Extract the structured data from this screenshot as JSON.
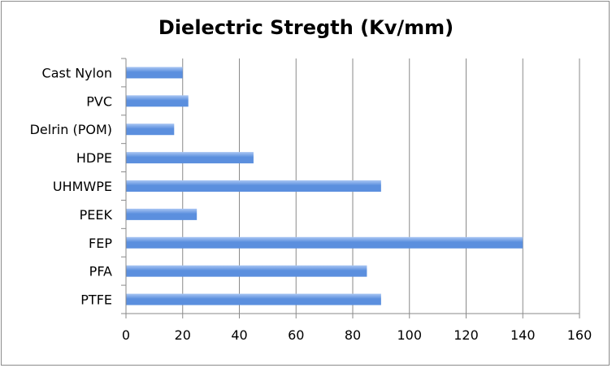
{
  "chart_data": {
    "type": "bar",
    "orientation": "horizontal",
    "title": "Dielectric Stregth (Kv/mm)",
    "categories": [
      "Cast Nylon",
      "PVC",
      "Delrin (POM)",
      "HDPE",
      "UHMWPE",
      "PEEK",
      "FEP",
      "PFA",
      "PTFE"
    ],
    "values": [
      20,
      22,
      17,
      45,
      90,
      25,
      140,
      85,
      90
    ],
    "xlabel": "",
    "ylabel": "",
    "xlim": [
      0,
      160
    ],
    "xticks": [
      0,
      20,
      40,
      60,
      80,
      100,
      120,
      140,
      160
    ],
    "grid": "vertical",
    "legend": "none",
    "bar_color": "#5b8fde",
    "bar_color_light": "#a9c6f3"
  }
}
